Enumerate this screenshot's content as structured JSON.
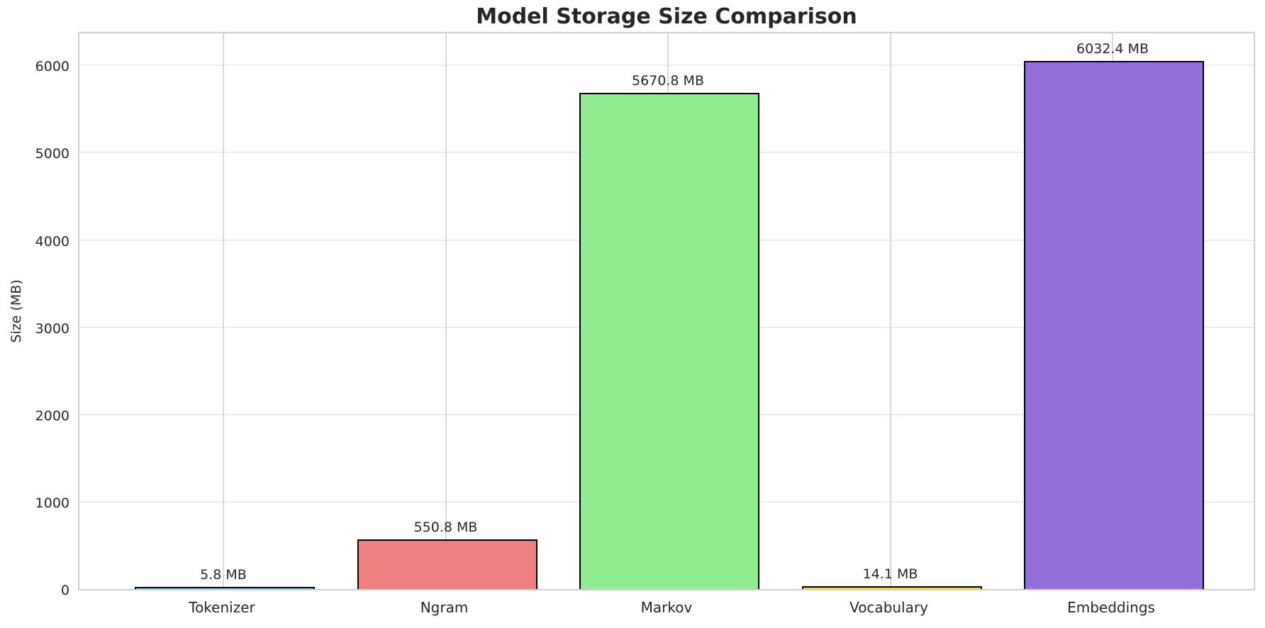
{
  "chart_data": {
    "type": "bar",
    "title": "Model Storage Size Comparison",
    "ylabel": "Size (MB)",
    "xlabel": "",
    "categories": [
      "Tokenizer",
      "Ngram",
      "Markov",
      "Vocabulary",
      "Embeddings"
    ],
    "values": [
      5.8,
      550.8,
      5670.8,
      14.1,
      6032.4
    ],
    "value_labels": [
      "5.8 MB",
      "550.8 MB",
      "5670.8 MB",
      "14.1 MB",
      "6032.4 MB"
    ],
    "bar_colors": [
      "#87CEEB",
      "#F08080",
      "#90EE90",
      "#FFD700",
      "#9370DB"
    ],
    "bar_edge_color": "#000000",
    "yticks": [
      0,
      1000,
      2000,
      3000,
      4000,
      5000,
      6000
    ],
    "ytick_labels": [
      "0",
      "1000",
      "2000",
      "3000",
      "4000",
      "5000",
      "6000"
    ],
    "ylim": [
      0,
      6400
    ],
    "grid": true,
    "legend_position": "none",
    "text_color": "#262626",
    "background_color": "#ffffff"
  }
}
